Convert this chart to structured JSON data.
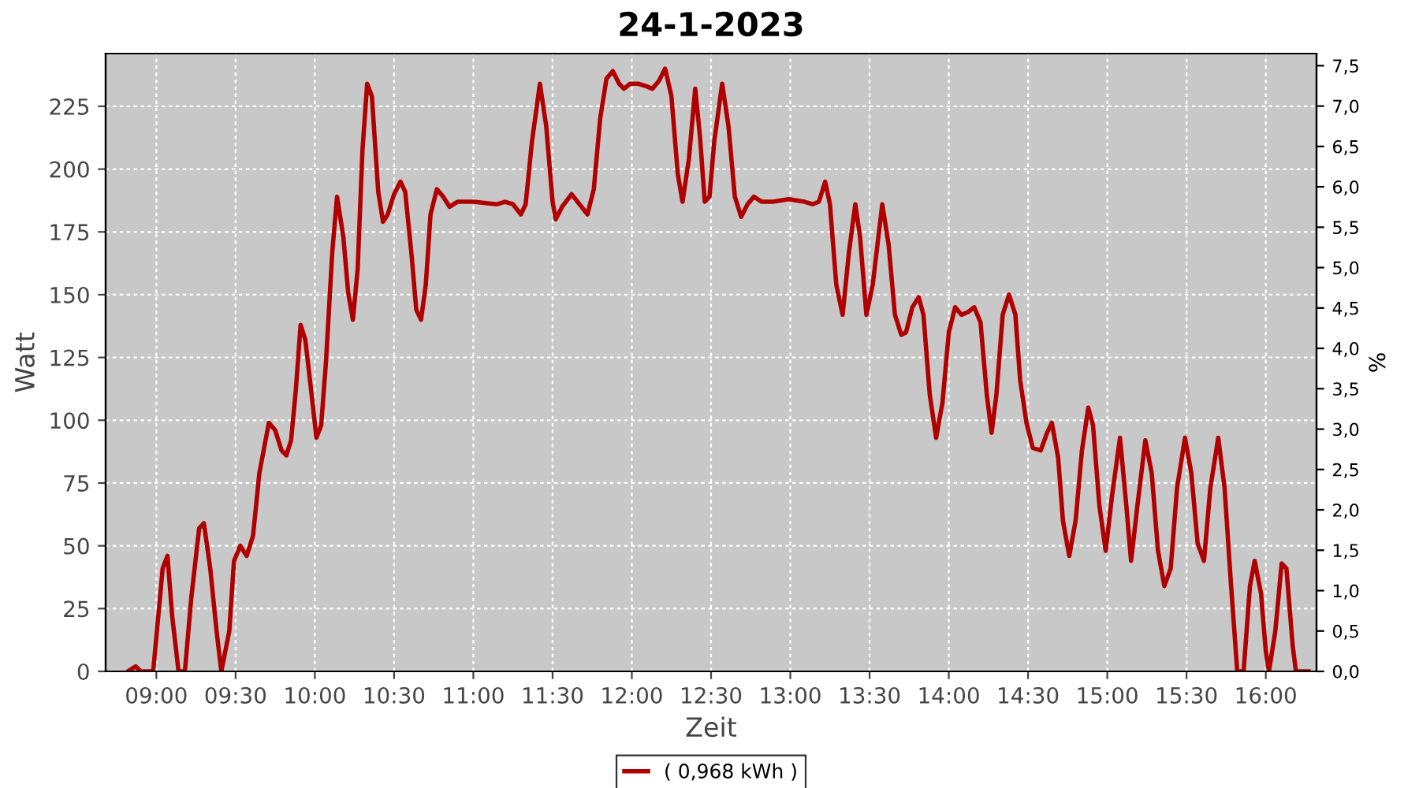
{
  "chart_data": {
    "type": "line",
    "title": "24-1-2023",
    "xlabel": "Zeit",
    "ylabel": "Watt",
    "y2label": "%",
    "x": [
      8.82,
      8.87,
      8.9,
      8.98,
      9.04,
      9.07,
      9.1,
      9.14,
      9.18,
      9.22,
      9.27,
      9.3,
      9.34,
      9.38,
      9.41,
      9.46,
      9.49,
      9.53,
      9.57,
      9.61,
      9.65,
      9.71,
      9.75,
      9.79,
      9.82,
      9.85,
      9.88,
      9.91,
      9.94,
      9.98,
      10.01,
      10.04,
      10.07,
      10.11,
      10.14,
      10.18,
      10.21,
      10.24,
      10.27,
      10.3,
      10.33,
      10.36,
      10.4,
      10.43,
      10.46,
      10.5,
      10.54,
      10.57,
      10.61,
      10.64,
      10.67,
      10.7,
      10.73,
      10.77,
      10.81,
      10.85,
      10.9,
      11.0,
      11.15,
      11.2,
      11.25,
      11.3,
      11.33,
      11.37,
      11.42,
      11.46,
      11.5,
      11.52,
      11.56,
      11.62,
      11.67,
      11.72,
      11.76,
      11.8,
      11.84,
      11.88,
      11.92,
      11.95,
      11.99,
      12.04,
      12.09,
      12.13,
      12.17,
      12.21,
      12.25,
      12.29,
      12.32,
      12.36,
      12.4,
      12.43,
      12.46,
      12.49,
      12.52,
      12.57,
      12.61,
      12.65,
      12.69,
      12.73,
      12.77,
      12.82,
      12.89,
      12.99,
      13.09,
      13.14,
      13.18,
      13.22,
      13.25,
      13.29,
      13.33,
      13.37,
      13.41,
      13.44,
      13.48,
      13.52,
      13.58,
      13.62,
      13.66,
      13.7,
      13.73,
      13.77,
      13.81,
      13.84,
      13.88,
      13.92,
      13.96,
      14.0,
      14.04,
      14.08,
      14.12,
      14.16,
      14.2,
      14.24,
      14.27,
      14.3,
      14.34,
      14.38,
      14.42,
      14.45,
      14.49,
      14.53,
      14.58,
      14.62,
      14.65,
      14.69,
      14.72,
      14.76,
      14.8,
      14.84,
      14.88,
      14.91,
      14.95,
      14.99,
      15.03,
      15.08,
      15.12,
      15.15,
      15.19,
      15.24,
      15.28,
      15.32,
      15.36,
      15.4,
      15.44,
      15.49,
      15.53,
      15.57,
      15.61,
      15.65,
      15.7,
      15.74,
      15.78,
      15.82,
      15.86,
      15.9,
      15.93,
      15.97,
      16.0,
      16.02,
      16.06,
      16.1,
      16.13,
      16.17,
      16.19,
      16.27
    ],
    "series": [
      {
        "name": "( 0,968 kWh )",
        "color": "#b00000",
        "values": [
          0,
          2,
          0,
          0,
          41,
          46,
          22,
          0,
          0,
          29,
          57,
          59,
          41,
          16,
          0,
          16,
          44,
          50,
          46,
          54,
          79,
          99,
          96,
          88,
          86,
          92,
          112,
          138,
          132,
          110,
          93,
          98,
          123,
          167,
          189,
          173,
          151,
          140,
          160,
          207,
          234,
          229,
          191,
          179,
          182,
          190,
          195,
          191,
          166,
          144,
          140,
          154,
          182,
          192,
          189,
          185,
          187,
          187,
          186,
          187,
          186,
          182,
          186,
          211,
          234,
          217,
          187,
          180,
          185,
          190,
          186,
          182,
          192,
          220,
          236,
          239,
          234,
          232,
          234,
          234,
          233,
          232,
          235,
          240,
          229,
          198,
          187,
          204,
          232,
          213,
          187,
          189,
          211,
          234,
          217,
          189,
          181,
          186,
          189,
          187,
          187,
          188,
          187,
          186,
          187,
          195,
          186,
          154,
          142,
          167,
          186,
          173,
          142,
          154,
          186,
          170,
          142,
          134,
          135,
          145,
          149,
          142,
          110,
          93,
          107,
          135,
          145,
          142,
          143,
          145,
          139,
          110,
          95,
          110,
          142,
          150,
          142,
          116,
          99,
          89,
          88,
          95,
          99,
          85,
          60,
          46,
          60,
          88,
          105,
          98,
          66,
          48,
          70,
          93,
          66,
          44,
          66,
          92,
          79,
          48,
          34,
          41,
          73,
          93,
          79,
          51,
          44,
          73,
          93,
          73,
          35,
          0,
          0,
          34,
          44,
          31,
          8,
          0,
          16,
          43,
          41,
          10,
          0,
          0
        ]
      }
    ],
    "xlim": [
      8.68,
      16.32
    ],
    "xticks": [
      {
        "value": 9,
        "label": "09:00"
      },
      {
        "value": 9.5,
        "label": "09:30"
      },
      {
        "value": 10,
        "label": "10:00"
      },
      {
        "value": 10.5,
        "label": "10:30"
      },
      {
        "value": 11,
        "label": "11:00"
      },
      {
        "value": 11.5,
        "label": "11:30"
      },
      {
        "value": 12,
        "label": "12:00"
      },
      {
        "value": 12.5,
        "label": "12:30"
      },
      {
        "value": 13,
        "label": "13:00"
      },
      {
        "value": 13.5,
        "label": "13:30"
      },
      {
        "value": 14,
        "label": "14:00"
      },
      {
        "value": 14.5,
        "label": "14:30"
      },
      {
        "value": 15,
        "label": "15:00"
      },
      {
        "value": 15.5,
        "label": "15:30"
      },
      {
        "value": 16,
        "label": "16:00"
      }
    ],
    "ylim": [
      0,
      246
    ],
    "yticks": [
      0,
      25,
      50,
      75,
      100,
      125,
      150,
      175,
      200,
      225
    ],
    "y2lim": [
      0,
      7.65
    ],
    "y2ticks": [
      {
        "value": 0,
        "label": "0,0"
      },
      {
        "value": 0.5,
        "label": "0,5"
      },
      {
        "value": 1,
        "label": "1,0"
      },
      {
        "value": 1.5,
        "label": "1,5"
      },
      {
        "value": 2,
        "label": "2,0"
      },
      {
        "value": 2.5,
        "label": "2,5"
      },
      {
        "value": 3,
        "label": "3,0"
      },
      {
        "value": 3.5,
        "label": "3,5"
      },
      {
        "value": 4,
        "label": "4,0"
      },
      {
        "value": 4.5,
        "label": "4,5"
      },
      {
        "value": 5,
        "label": "5,0"
      },
      {
        "value": 5.5,
        "label": "5,5"
      },
      {
        "value": 6,
        "label": "6,0"
      },
      {
        "value": 6.5,
        "label": "6,5"
      },
      {
        "value": 7,
        "label": "7,0"
      },
      {
        "value": 7.5,
        "label": "7,5"
      }
    ],
    "grid": true,
    "legend": "bottom",
    "line_style": "solid",
    "marker": "none"
  }
}
